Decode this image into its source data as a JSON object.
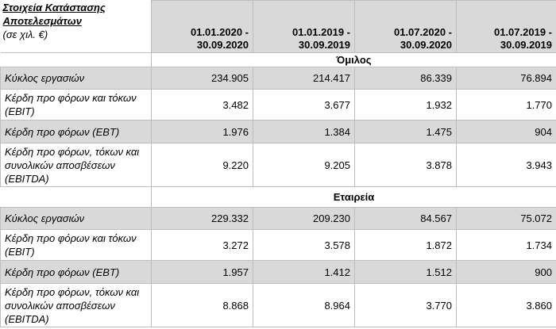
{
  "header": {
    "title_lines": [
      "Στοιχεία Κατάστασης",
      "Αποτελεσμάτων"
    ],
    "unit": "(σε χιλ. €)",
    "periods": [
      [
        "01.01.2020 -",
        "30.09.2020"
      ],
      [
        "01.01.2019 -",
        "30.09.2019"
      ],
      [
        "01.07.2020 -",
        "30.09.2020"
      ],
      [
        "01.07.2019 -",
        "30.09.2019"
      ]
    ]
  },
  "sections": [
    {
      "name": "Όμιλος",
      "rows": [
        {
          "label": "Κύκλος εργασιών",
          "values": [
            "234.905",
            "214.417",
            "86.339",
            "76.894"
          ]
        },
        {
          "label": "Κέρδη προ φόρων και τόκων (EBIT)",
          "values": [
            "3.482",
            "3.677",
            "1.932",
            "1.770"
          ]
        },
        {
          "label": "Κέρδη προ φόρων (EBT)",
          "values": [
            "1.976",
            "1.384",
            "1.475",
            "904"
          ]
        },
        {
          "label": "Κέρδη προ φόρων, τόκων και συνολικών αποσβέσεων (EBITDA)",
          "values": [
            "9.220",
            "9.205",
            "3.878",
            "3.943"
          ]
        }
      ]
    },
    {
      "name": "Εταιρεία",
      "rows": [
        {
          "label": "Κύκλος εργασιών",
          "values": [
            "229.332",
            "209.230",
            "84.567",
            "75.072"
          ]
        },
        {
          "label": "Κέρδη προ φόρων και τόκων (EBIT)",
          "values": [
            "3.272",
            "3.578",
            "1.872",
            "1.734"
          ]
        },
        {
          "label": "Κέρδη προ φόρων (EBT)",
          "values": [
            "1.957",
            "1.412",
            "1.512",
            "900"
          ]
        },
        {
          "label": "Κέρδη προ φόρων, τόκων και συνολικών αποσβέσεων (EBITDA)",
          "values": [
            "8.868",
            "8.964",
            "3.770",
            "3.860"
          ]
        }
      ]
    }
  ]
}
